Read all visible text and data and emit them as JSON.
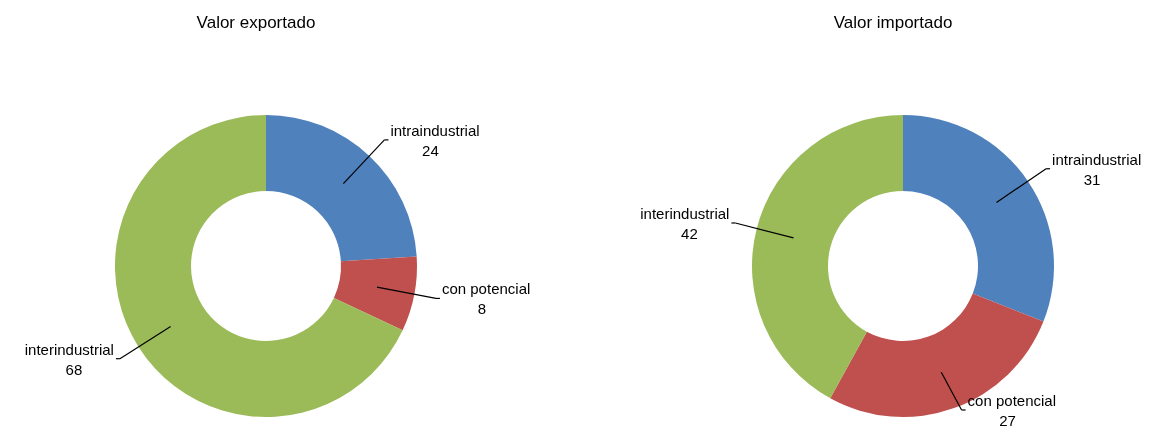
{
  "chart_data": [
    {
      "type": "donut",
      "title": "Valor exportado",
      "categories": [
        "intraindustrial",
        "con potencial",
        "interindustrial"
      ],
      "values": [
        24,
        8,
        68
      ],
      "colors": [
        "#4f81bd",
        "#c0504d",
        "#9bbb59"
      ],
      "data_labels": true
    },
    {
      "type": "donut",
      "title": "Valor importado",
      "categories": [
        "intraindustrial",
        "con potencial",
        "interindustrial"
      ],
      "values": [
        31,
        27,
        42
      ],
      "colors": [
        "#4f81bd",
        "#c0504d",
        "#9bbb59"
      ],
      "data_labels": true
    }
  ]
}
